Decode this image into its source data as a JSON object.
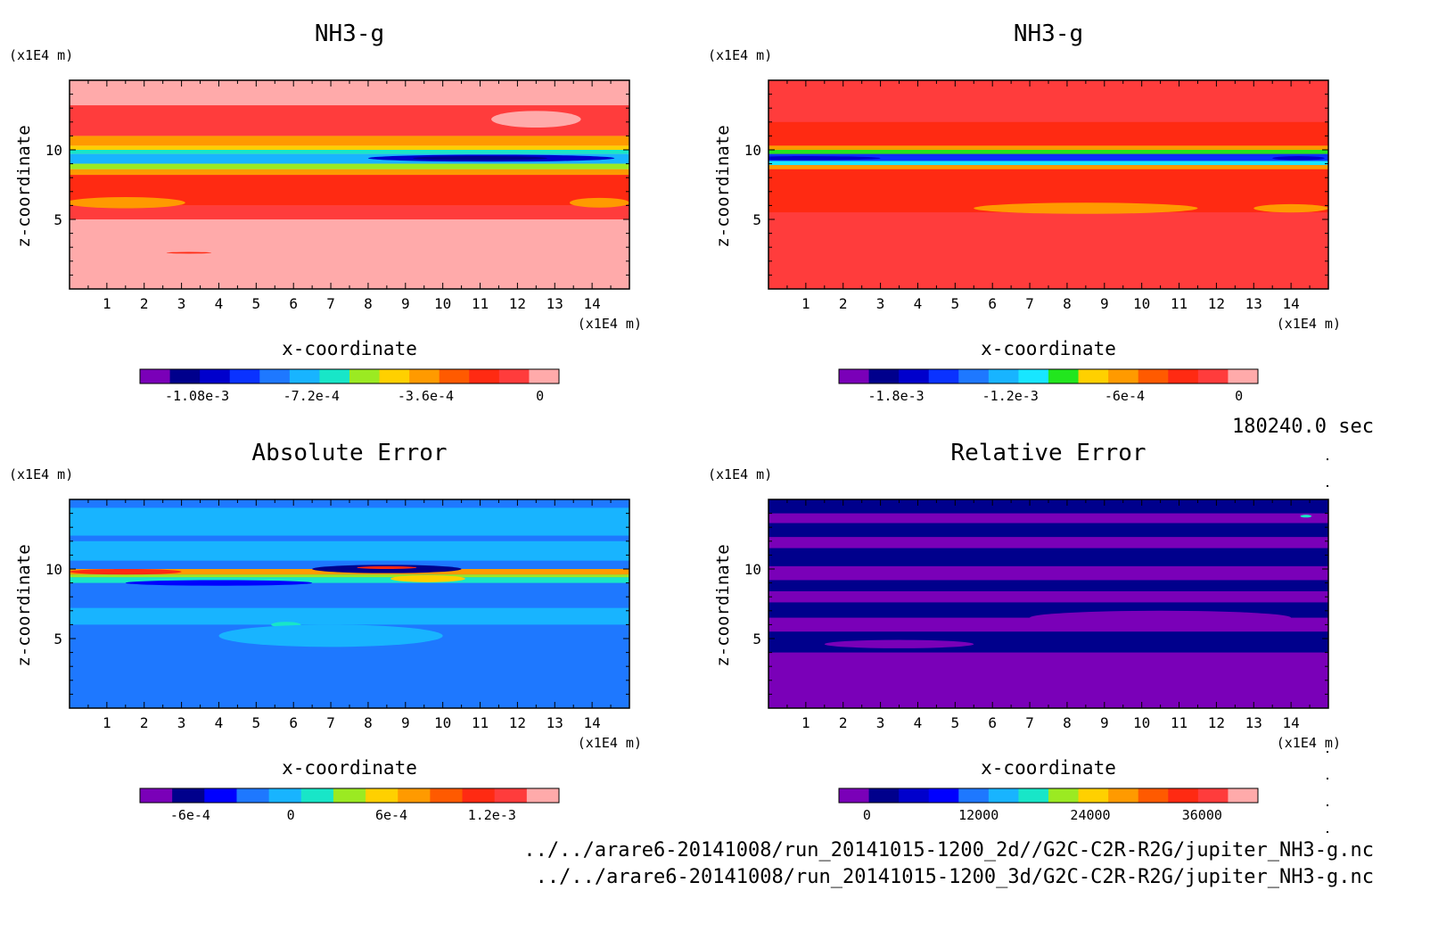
{
  "page": {
    "time_label": "180240.0 sec",
    "footer_lines": [
      "../../arare6-20141008/run_20141015-1200_2d//G2C-C2R-R2G/jupiter_NH3-g.nc",
      "../../arare6-20141008/run_20141015-1200_3d/G2C-C2R-R2G/jupiter_NH3-g.nc"
    ]
  },
  "chart_data": [
    {
      "type": "heatmap",
      "title": "NH3-g",
      "xlabel": "x-coordinate",
      "ylabel": "z-coordinate",
      "x_unit": "(x1E4 m)",
      "z_unit": "(x1E4 m)",
      "xlim": [
        0,
        15
      ],
      "zlim": [
        0,
        15
      ],
      "x_ticks": [
        "1",
        "2",
        "3",
        "4",
        "5",
        "6",
        "7",
        "8",
        "9",
        "10",
        "11",
        "12",
        "13",
        "14"
      ],
      "z_ticks": [
        "5",
        "10"
      ],
      "colorbar_colors": [
        "#7a00b8",
        "#00008c",
        "#0000cc",
        "#0a32ff",
        "#1e78ff",
        "#18b4ff",
        "#18e6c8",
        "#9bea22",
        "#ffd000",
        "#ff9a00",
        "#ff5a00",
        "#ff2a12",
        "#ff3c3c",
        "#ffaaaa"
      ],
      "colorbar_ticks": [
        "-1.08e-3",
        "-7.2e-4",
        "-3.6e-4",
        "0"
      ],
      "colorbar_tick_values": [
        -0.00108,
        -0.00072,
        -0.00036,
        0
      ],
      "colorbar_range": [
        -0.00126,
        6e-05
      ],
      "background": "#ffaaaa",
      "bands": [
        {
          "z0": 13.2,
          "z1": 14.4,
          "color": "#ffaaaa"
        },
        {
          "z0": 11.0,
          "z1": 13.2,
          "color": "#ff3c3c"
        },
        {
          "z0": 10.3,
          "z1": 11.0,
          "color": "#ff9a00"
        },
        {
          "z0": 10.0,
          "z1": 10.3,
          "color": "#ffd000"
        },
        {
          "z0": 9.7,
          "z1": 10.0,
          "color": "#18e6c8"
        },
        {
          "z0": 9.0,
          "z1": 9.7,
          "color": "#18b4ff"
        },
        {
          "z0": 8.6,
          "z1": 9.0,
          "color": "#9bea22"
        },
        {
          "z0": 8.2,
          "z1": 8.6,
          "color": "#ff9a00"
        },
        {
          "z0": 6.0,
          "z1": 8.2,
          "color": "#ff2a12"
        },
        {
          "z0": 5.0,
          "z1": 6.0,
          "color": "#ff3c3c"
        }
      ],
      "blobs": [
        {
          "x": 11.3,
          "z": 9.4,
          "rx": 3.3,
          "rz": 0.25,
          "color": "#0000cc"
        },
        {
          "x": 11.0,
          "z": 9.4,
          "rx": 1.8,
          "rz": 0.15,
          "color": "#00008c"
        },
        {
          "x": 1.5,
          "z": 6.2,
          "rx": 1.6,
          "rz": 0.4,
          "color": "#ff9a00"
        },
        {
          "x": 14.2,
          "z": 6.2,
          "rx": 0.8,
          "rz": 0.35,
          "color": "#ff9a00"
        },
        {
          "x": 3.2,
          "z": 2.6,
          "rx": 0.6,
          "rz": 0.06,
          "color": "#ff2a12"
        },
        {
          "x": 12.5,
          "z": 12.2,
          "rx": 1.2,
          "rz": 0.6,
          "color": "#ffaaaa"
        }
      ]
    },
    {
      "type": "heatmap",
      "title": "NH3-g",
      "xlabel": "x-coordinate",
      "ylabel": "z-coordinate",
      "x_unit": "(x1E4 m)",
      "z_unit": "(x1E4 m)",
      "xlim": [
        0,
        15
      ],
      "zlim": [
        0,
        15
      ],
      "x_ticks": [
        "1",
        "2",
        "3",
        "4",
        "5",
        "6",
        "7",
        "8",
        "9",
        "10",
        "11",
        "12",
        "13",
        "14"
      ],
      "z_ticks": [
        "5",
        "10"
      ],
      "colorbar_colors": [
        "#7a00b8",
        "#00008c",
        "#0000cc",
        "#0a32ff",
        "#1e78ff",
        "#18b4ff",
        "#18e6ff",
        "#22e61e",
        "#ffd000",
        "#ff9a00",
        "#ff5a00",
        "#ff2a12",
        "#ff3c3c",
        "#ffaaaa"
      ],
      "colorbar_ticks": [
        "-1.8e-3",
        "-1.2e-3",
        "-6e-4",
        "0"
      ],
      "colorbar_tick_values": [
        -0.0018,
        -0.0012,
        -0.0006,
        0
      ],
      "colorbar_range": [
        -0.0021,
        0.0001
      ],
      "background": "#ff3c3c",
      "bands": [
        {
          "z0": 12.0,
          "z1": 14.4,
          "color": "#ff3c3c"
        },
        {
          "z0": 10.3,
          "z1": 12.0,
          "color": "#ff2a12"
        },
        {
          "z0": 10.0,
          "z1": 10.3,
          "color": "#ff9a00"
        },
        {
          "z0": 9.7,
          "z1": 10.0,
          "color": "#22e61e"
        },
        {
          "z0": 9.2,
          "z1": 9.7,
          "color": "#0a32ff"
        },
        {
          "z0": 8.9,
          "z1": 9.2,
          "color": "#18e6ff"
        },
        {
          "z0": 8.6,
          "z1": 8.9,
          "color": "#ff9a00"
        },
        {
          "z0": 5.5,
          "z1": 8.6,
          "color": "#ff2a12"
        },
        {
          "z0": 0.0,
          "z1": 5.5,
          "color": "#ff3c3c"
        }
      ],
      "blobs": [
        {
          "x": 8.5,
          "z": 5.8,
          "rx": 3.0,
          "rz": 0.4,
          "color": "#ff9a00"
        },
        {
          "x": 14.0,
          "z": 5.8,
          "rx": 1.0,
          "rz": 0.3,
          "color": "#ff9a00"
        },
        {
          "x": 1.0,
          "z": 9.4,
          "rx": 2.0,
          "rz": 0.15,
          "color": "#0000cc"
        },
        {
          "x": 14.2,
          "z": 9.4,
          "rx": 0.7,
          "rz": 0.15,
          "color": "#0000cc"
        }
      ]
    },
    {
      "type": "heatmap",
      "title": "Absolute Error",
      "xlabel": "x-coordinate",
      "ylabel": "z-coordinate",
      "x_unit": "(x1E4 m)",
      "z_unit": "(x1E4 m)",
      "xlim": [
        0,
        15
      ],
      "zlim": [
        0,
        15
      ],
      "x_ticks": [
        "1",
        "2",
        "3",
        "4",
        "5",
        "6",
        "7",
        "8",
        "9",
        "10",
        "11",
        "12",
        "13",
        "14"
      ],
      "z_ticks": [
        "5",
        "10"
      ],
      "colorbar_colors": [
        "#7a00b8",
        "#00008c",
        "#0000ff",
        "#1e78ff",
        "#18b4ff",
        "#18e6c8",
        "#9bea22",
        "#ffd000",
        "#ff9a00",
        "#ff5a00",
        "#ff2a12",
        "#ff3c3c",
        "#ffaaaa"
      ],
      "colorbar_ticks": [
        "-6e-4",
        "0",
        "6e-4",
        "1.2e-3"
      ],
      "colorbar_tick_values": [
        -0.0006,
        0,
        0.0006,
        0.0012
      ],
      "colorbar_range": [
        -0.0009,
        0.0016
      ],
      "background": "#1e78ff",
      "bands": [
        {
          "z0": 12.4,
          "z1": 14.4,
          "color": "#18b4ff"
        },
        {
          "z0": 10.6,
          "z1": 12.0,
          "color": "#18b4ff"
        },
        {
          "z0": 9.6,
          "z1": 10.0,
          "color": "#ff9a00"
        },
        {
          "z0": 9.4,
          "z1": 9.6,
          "color": "#9bea22"
        },
        {
          "z0": 9.0,
          "z1": 9.4,
          "color": "#18e6c8"
        },
        {
          "z0": 6.0,
          "z1": 7.2,
          "color": "#18b4ff"
        }
      ],
      "blobs": [
        {
          "x": 1.5,
          "z": 9.8,
          "rx": 1.5,
          "rz": 0.2,
          "color": "#ff2a12"
        },
        {
          "x": 8.5,
          "z": 10.0,
          "rx": 2.0,
          "rz": 0.3,
          "color": "#00008c"
        },
        {
          "x": 8.5,
          "z": 10.1,
          "rx": 0.8,
          "rz": 0.1,
          "color": "#ff2a12"
        },
        {
          "x": 9.6,
          "z": 9.3,
          "rx": 1.0,
          "rz": 0.25,
          "color": "#ffd000"
        },
        {
          "x": 14.6,
          "z": 9.8,
          "rx": 0.6,
          "rz": 0.2,
          "color": "#ff9a00"
        },
        {
          "x": 5.8,
          "z": 6.0,
          "rx": 0.4,
          "rz": 0.2,
          "color": "#18e6c8"
        },
        {
          "x": 7.0,
          "z": 5.2,
          "rx": 3.0,
          "rz": 0.8,
          "color": "#18b4ff"
        },
        {
          "x": 4.0,
          "z": 9.0,
          "rx": 2.5,
          "rz": 0.2,
          "color": "#0000ff"
        }
      ]
    },
    {
      "type": "heatmap",
      "title": "Relative Error",
      "xlabel": "x-coordinate",
      "ylabel": "z-coordinate",
      "x_unit": "(x1E4 m)",
      "z_unit": "(x1E4 m)",
      "xlim": [
        0,
        15
      ],
      "zlim": [
        0,
        15
      ],
      "x_ticks": [
        "1",
        "2",
        "3",
        "4",
        "5",
        "6",
        "7",
        "8",
        "9",
        "10",
        "11",
        "12",
        "13",
        "14"
      ],
      "z_ticks": [
        "5",
        "10"
      ],
      "colorbar_colors": [
        "#7a00b8",
        "#00008c",
        "#0000cc",
        "#0000ff",
        "#1e78ff",
        "#18b4ff",
        "#18e6c8",
        "#9bea22",
        "#ffd000",
        "#ff9a00",
        "#ff5a00",
        "#ff2a12",
        "#ff3c3c",
        "#ffaaaa"
      ],
      "colorbar_ticks": [
        "0",
        "12000",
        "24000",
        "36000"
      ],
      "colorbar_tick_values": [
        0,
        12000,
        24000,
        36000
      ],
      "colorbar_range": [
        -3000,
        42000
      ],
      "background": "#00008c",
      "bands": [
        {
          "z0": 0.0,
          "z1": 4.0,
          "color": "#7a00b8"
        },
        {
          "z0": 5.5,
          "z1": 6.5,
          "color": "#7a00b8"
        },
        {
          "z0": 7.6,
          "z1": 8.4,
          "color": "#7a00b8"
        },
        {
          "z0": 9.2,
          "z1": 10.2,
          "color": "#7a00b8"
        },
        {
          "z0": 11.5,
          "z1": 12.3,
          "color": "#7a00b8"
        },
        {
          "z0": 13.3,
          "z1": 14.0,
          "color": "#7a00b8"
        }
      ],
      "blobs": [
        {
          "x": 3.5,
          "z": 4.6,
          "rx": 2.0,
          "rz": 0.3,
          "color": "#7a00b8"
        },
        {
          "x": 10.5,
          "z": 6.5,
          "rx": 3.5,
          "rz": 0.5,
          "color": "#7a00b8"
        },
        {
          "x": 14.4,
          "z": 13.8,
          "rx": 0.15,
          "rz": 0.1,
          "color": "#18e6c8"
        }
      ]
    }
  ]
}
